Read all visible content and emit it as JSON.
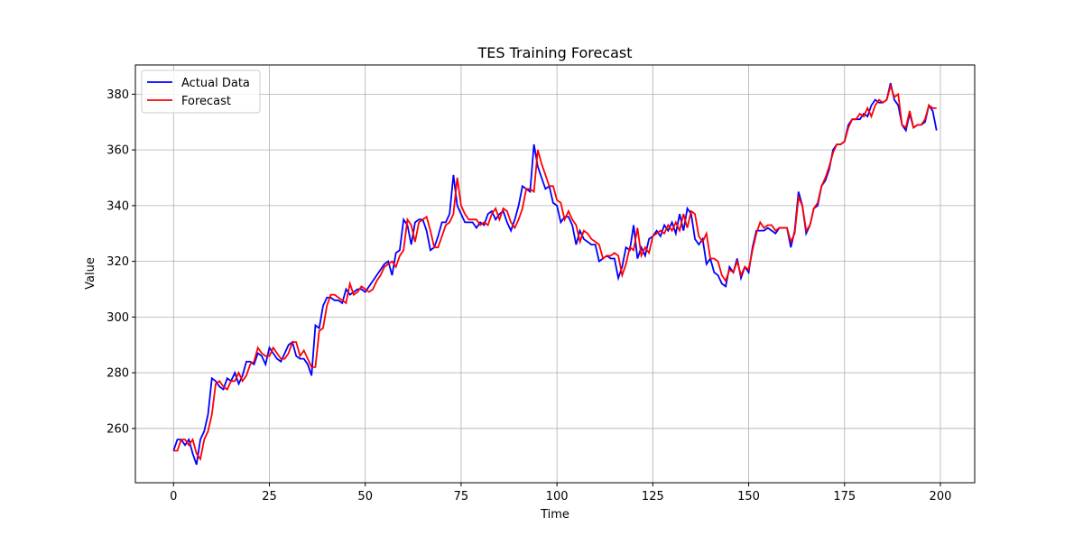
{
  "chart_data": {
    "type": "line",
    "title": "TES Training Forecast",
    "xlabel": "Time",
    "ylabel": "Value",
    "x": [
      0,
      1,
      2,
      3,
      4,
      5,
      6,
      7,
      8,
      9,
      10,
      11,
      12,
      13,
      14,
      15,
      16,
      17,
      18,
      19,
      20,
      21,
      22,
      23,
      24,
      25,
      26,
      27,
      28,
      29,
      30,
      31,
      32,
      33,
      34,
      35,
      36,
      37,
      38,
      39,
      40,
      41,
      42,
      43,
      44,
      45,
      46,
      47,
      48,
      49,
      50,
      51,
      52,
      53,
      54,
      55,
      56,
      57,
      58,
      59,
      60,
      61,
      62,
      63,
      64,
      65,
      66,
      67,
      68,
      69,
      70,
      71,
      72,
      73,
      74,
      75,
      76,
      77,
      78,
      79,
      80,
      81,
      82,
      83,
      84,
      85,
      86,
      87,
      88,
      89,
      90,
      91,
      92,
      93,
      94,
      95,
      96,
      97,
      98,
      99,
      100,
      101,
      102,
      103,
      104,
      105,
      106,
      107,
      108,
      109,
      110,
      111,
      112,
      113,
      114,
      115,
      116,
      117,
      118,
      119,
      120,
      121,
      122,
      123,
      124,
      125,
      126,
      127,
      128,
      129,
      130,
      131,
      132,
      133,
      134,
      135,
      136,
      137,
      138,
      139,
      140,
      141,
      142,
      143,
      144,
      145,
      146,
      147,
      148,
      149,
      150,
      151,
      152,
      153,
      154,
      155,
      156,
      157,
      158,
      159,
      160,
      161,
      162,
      163,
      164,
      165,
      166,
      167,
      168,
      169,
      170,
      171,
      172,
      173,
      174,
      175,
      176,
      177,
      178,
      179,
      180,
      181,
      182,
      183,
      184,
      185,
      186,
      187,
      188,
      189,
      190,
      191,
      192,
      193,
      194,
      195,
      196,
      197,
      198,
      199
    ],
    "series": [
      {
        "name": "Actual Data",
        "color": "#0000ff",
        "values": [
          252,
          256,
          256,
          254,
          256,
          251,
          247,
          256,
          259,
          265,
          278,
          277,
          275,
          274,
          278,
          277,
          280,
          276,
          279,
          284,
          284,
          283,
          287,
          286,
          283,
          289,
          287,
          285,
          284,
          287,
          290,
          291,
          286,
          285,
          285,
          283,
          279,
          297,
          296,
          304,
          307,
          307,
          306,
          306,
          305,
          310,
          308,
          309,
          310,
          310,
          309,
          311,
          313,
          315,
          317,
          319,
          320,
          315,
          323,
          324,
          335,
          333,
          326,
          334,
          335,
          335,
          331,
          324,
          325,
          329,
          334,
          334,
          337,
          351,
          340,
          337,
          334,
          334,
          334,
          332,
          334,
          333,
          337,
          338,
          335,
          337,
          338,
          334,
          331,
          335,
          340,
          347,
          346,
          345,
          362,
          354,
          350,
          346,
          347,
          341,
          340,
          334,
          336,
          336,
          333,
          326,
          331,
          328,
          327,
          326,
          326,
          320,
          321,
          322,
          321,
          321,
          314,
          318,
          325,
          324,
          333,
          321,
          325,
          322,
          328,
          329,
          331,
          329,
          333,
          331,
          334,
          330,
          337,
          331,
          339,
          337,
          328,
          326,
          328,
          319,
          321,
          316,
          315,
          312,
          311,
          318,
          316,
          321,
          314,
          318,
          316,
          325,
          331,
          331,
          331,
          332,
          331,
          330,
          332,
          332,
          332,
          325,
          331,
          345,
          340,
          330,
          333,
          339,
          340,
          347,
          349,
          353,
          360,
          362,
          362,
          363,
          369,
          371,
          371,
          371,
          373,
          372,
          376,
          378,
          377,
          377,
          378,
          384,
          378,
          376,
          369,
          367,
          373,
          368,
          369,
          369,
          370,
          376,
          374,
          367
        ]
      },
      {
        "name": "Forecast",
        "color": "#ff0000",
        "values": [
          252,
          252,
          256,
          256,
          254,
          256,
          251,
          249,
          256,
          259,
          265,
          276,
          277,
          275,
          274,
          277,
          277,
          280,
          277,
          279,
          283,
          284,
          289,
          287,
          286,
          286,
          289,
          287,
          285,
          285,
          287,
          291,
          291,
          286,
          288,
          285,
          282,
          282,
          295,
          296,
          304,
          308,
          308,
          307,
          306,
          305,
          312,
          308,
          309,
          311,
          310,
          309,
          310,
          313,
          315,
          318,
          319,
          320,
          318,
          322,
          324,
          335,
          333,
          327,
          334,
          335,
          336,
          331,
          325,
          325,
          329,
          333,
          334,
          337,
          350,
          340,
          337,
          335,
          335,
          335,
          333,
          334,
          333,
          337,
          339,
          335,
          339,
          338,
          334,
          332,
          335,
          339,
          346,
          346,
          345,
          360,
          355,
          351,
          347,
          347,
          342,
          341,
          335,
          338,
          335,
          333,
          327,
          331,
          330,
          328,
          327,
          326,
          321,
          322,
          322,
          323,
          322,
          315,
          319,
          325,
          324,
          332,
          322,
          325,
          323,
          329,
          330,
          331,
          330,
          333,
          331,
          334,
          331,
          337,
          332,
          338,
          337,
          329,
          327,
          330,
          321,
          321,
          320,
          315,
          313,
          317,
          316,
          320,
          315,
          318,
          317,
          324,
          330,
          334,
          332,
          333,
          333,
          331,
          332,
          332,
          332,
          327,
          330,
          343,
          340,
          331,
          333,
          339,
          341,
          347,
          350,
          354,
          359,
          362,
          362,
          363,
          368,
          371,
          371,
          373,
          372,
          375,
          372,
          376,
          378,
          377,
          378,
          383,
          379,
          380,
          369,
          368,
          374,
          368,
          369,
          369,
          371,
          376,
          375,
          375
        ]
      }
    ],
    "xlim": [
      -9.95,
      208.95
    ],
    "ylim": [
      240.5,
      390.5
    ],
    "xticks": [
      0,
      25,
      50,
      75,
      100,
      125,
      150,
      175,
      200
    ],
    "yticks": [
      260,
      280,
      300,
      320,
      340,
      360,
      380
    ],
    "grid": true,
    "legend": "upper left"
  }
}
